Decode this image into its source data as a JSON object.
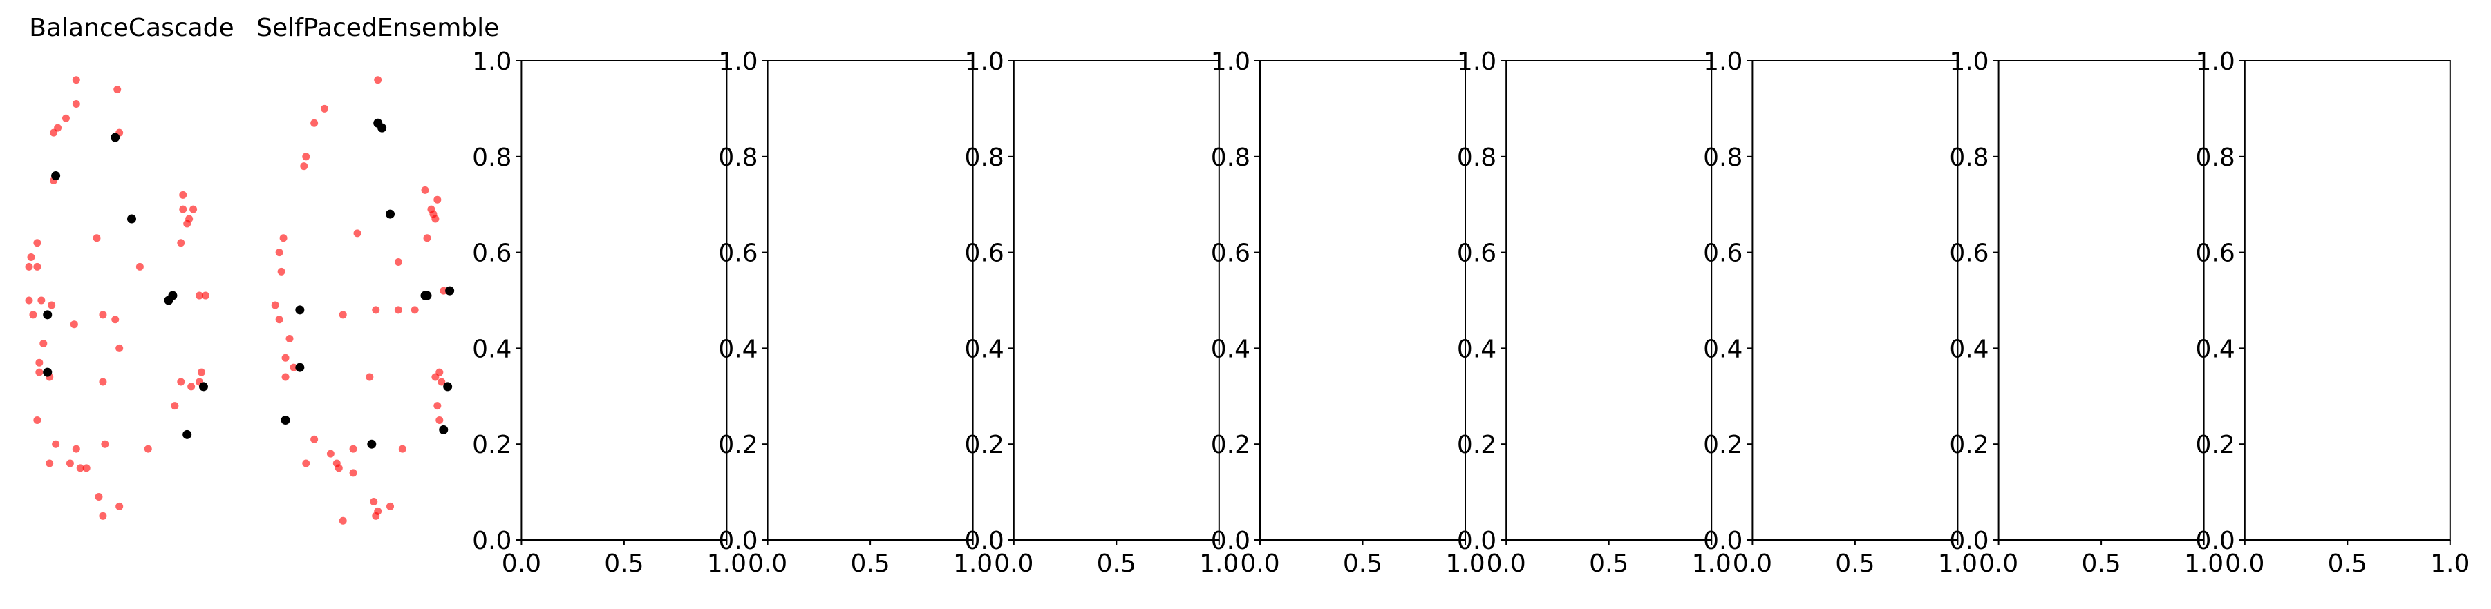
{
  "figure": {
    "background": "#ffffff",
    "accent_colors": {
      "majority": "#ff0000",
      "minority": "#000000",
      "axis": "#000000"
    }
  },
  "chart_data": [
    {
      "type": "scatter",
      "title": "BalanceCascade",
      "axis_visible": false,
      "xlim": [
        0,
        1
      ],
      "ylim": [
        0,
        1
      ],
      "series": [
        {
          "color": "#ff0000",
          "alpha": 0.6,
          "points": [
            [
              0.23,
              0.96
            ],
            [
              0.43,
              0.94
            ],
            [
              0.18,
              0.88
            ],
            [
              0.23,
              0.91
            ],
            [
              0.14,
              0.86
            ],
            [
              0.12,
              0.85
            ],
            [
              0.44,
              0.85
            ],
            [
              0.12,
              0.75
            ],
            [
              0.75,
              0.72
            ],
            [
              0.75,
              0.69
            ],
            [
              0.8,
              0.69
            ],
            [
              0.78,
              0.67
            ],
            [
              0.77,
              0.66
            ],
            [
              0.33,
              0.63
            ],
            [
              0.04,
              0.62
            ],
            [
              0.01,
              0.59
            ],
            [
              0.74,
              0.62
            ],
            [
              0.04,
              0.57
            ],
            [
              0.0,
              0.57
            ],
            [
              0.54,
              0.57
            ],
            [
              0.0,
              0.5
            ],
            [
              0.06,
              0.5
            ],
            [
              0.83,
              0.51
            ],
            [
              0.86,
              0.51
            ],
            [
              0.02,
              0.47
            ],
            [
              0.11,
              0.49
            ],
            [
              0.22,
              0.45
            ],
            [
              0.36,
              0.47
            ],
            [
              0.42,
              0.46
            ],
            [
              0.44,
              0.4
            ],
            [
              0.07,
              0.41
            ],
            [
              0.05,
              0.37
            ],
            [
              0.1,
              0.34
            ],
            [
              0.05,
              0.35
            ],
            [
              0.36,
              0.33
            ],
            [
              0.84,
              0.35
            ],
            [
              0.83,
              0.33
            ],
            [
              0.74,
              0.33
            ],
            [
              0.79,
              0.32
            ],
            [
              0.71,
              0.28
            ],
            [
              0.04,
              0.25
            ],
            [
              0.13,
              0.2
            ],
            [
              0.2,
              0.16
            ],
            [
              0.23,
              0.19
            ],
            [
              0.37,
              0.2
            ],
            [
              0.1,
              0.16
            ],
            [
              0.25,
              0.15
            ],
            [
              0.28,
              0.15
            ],
            [
              0.58,
              0.19
            ],
            [
              0.34,
              0.09
            ],
            [
              0.44,
              0.07
            ],
            [
              0.36,
              0.05
            ]
          ]
        },
        {
          "color": "#000000",
          "alpha": 1.0,
          "points": [
            [
              0.42,
              0.84
            ],
            [
              0.13,
              0.76
            ],
            [
              0.5,
              0.67
            ],
            [
              0.68,
              0.5
            ],
            [
              0.7,
              0.51
            ],
            [
              0.09,
              0.47
            ],
            [
              0.09,
              0.35
            ],
            [
              0.85,
              0.32
            ],
            [
              0.77,
              0.22
            ]
          ]
        }
      ]
    },
    {
      "type": "scatter",
      "title": "SelfPacedEnsemble",
      "axis_visible": false,
      "xlim": [
        0,
        1
      ],
      "ylim": [
        0,
        1
      ],
      "series": [
        {
          "color": "#ff0000",
          "alpha": 0.6,
          "points": [
            [
              0.5,
              0.96
            ],
            [
              0.24,
              0.9
            ],
            [
              0.19,
              0.87
            ],
            [
              0.15,
              0.8
            ],
            [
              0.14,
              0.78
            ],
            [
              0.73,
              0.73
            ],
            [
              0.79,
              0.71
            ],
            [
              0.76,
              0.69
            ],
            [
              0.78,
              0.67
            ],
            [
              0.77,
              0.68
            ],
            [
              0.4,
              0.64
            ],
            [
              0.74,
              0.63
            ],
            [
              0.04,
              0.63
            ],
            [
              0.02,
              0.6
            ],
            [
              0.03,
              0.56
            ],
            [
              0.6,
              0.58
            ],
            [
              0.82,
              0.52
            ],
            [
              0.0,
              0.49
            ],
            [
              0.33,
              0.47
            ],
            [
              0.49,
              0.48
            ],
            [
              0.6,
              0.48
            ],
            [
              0.68,
              0.48
            ],
            [
              0.02,
              0.46
            ],
            [
              0.07,
              0.42
            ],
            [
              0.05,
              0.38
            ],
            [
              0.09,
              0.36
            ],
            [
              0.05,
              0.34
            ],
            [
              0.78,
              0.34
            ],
            [
              0.8,
              0.35
            ],
            [
              0.46,
              0.34
            ],
            [
              0.81,
              0.33
            ],
            [
              0.84,
              0.32
            ],
            [
              0.79,
              0.28
            ],
            [
              0.8,
              0.25
            ],
            [
              0.19,
              0.21
            ],
            [
              0.38,
              0.19
            ],
            [
              0.27,
              0.18
            ],
            [
              0.62,
              0.19
            ],
            [
              0.15,
              0.16
            ],
            [
              0.31,
              0.15
            ],
            [
              0.3,
              0.16
            ],
            [
              0.38,
              0.14
            ],
            [
              0.48,
              0.08
            ],
            [
              0.56,
              0.07
            ],
            [
              0.5,
              0.06
            ],
            [
              0.49,
              0.05
            ],
            [
              0.33,
              0.04
            ]
          ]
        },
        {
          "color": "#000000",
          "alpha": 1.0,
          "points": [
            [
              0.5,
              0.87
            ],
            [
              0.52,
              0.86
            ],
            [
              0.56,
              0.68
            ],
            [
              0.74,
              0.51
            ],
            [
              0.73,
              0.51
            ],
            [
              0.85,
              0.52
            ],
            [
              0.12,
              0.48
            ],
            [
              0.12,
              0.36
            ],
            [
              0.84,
              0.32
            ],
            [
              0.82,
              0.23
            ],
            [
              0.05,
              0.25
            ],
            [
              0.47,
              0.2
            ]
          ]
        }
      ]
    },
    {
      "type": "scatter",
      "title": "",
      "axis_visible": true,
      "xlim": [
        0,
        1
      ],
      "ylim": [
        0,
        1
      ],
      "xticks": [
        "0.0",
        "0.5",
        "1.0"
      ],
      "yticks": [
        "0.0",
        "0.2",
        "0.4",
        "0.6",
        "0.8",
        "1.0"
      ],
      "series": []
    },
    {
      "type": "scatter",
      "title": "",
      "axis_visible": true,
      "xlim": [
        0,
        1
      ],
      "ylim": [
        0,
        1
      ],
      "xticks": [
        "0.0",
        "0.5",
        "1.0"
      ],
      "yticks": [
        "0.0",
        "0.2",
        "0.4",
        "0.6",
        "0.8",
        "1.0"
      ],
      "series": []
    },
    {
      "type": "scatter",
      "title": "",
      "axis_visible": true,
      "xlim": [
        0,
        1
      ],
      "ylim": [
        0,
        1
      ],
      "xticks": [
        "0.0",
        "0.5",
        "1.0"
      ],
      "yticks": [
        "0.0",
        "0.2",
        "0.4",
        "0.6",
        "0.8",
        "1.0"
      ],
      "series": []
    },
    {
      "type": "scatter",
      "title": "",
      "axis_visible": true,
      "xlim": [
        0,
        1
      ],
      "ylim": [
        0,
        1
      ],
      "xticks": [
        "0.0",
        "0.5",
        "1.0"
      ],
      "yticks": [
        "0.0",
        "0.2",
        "0.4",
        "0.6",
        "0.8",
        "1.0"
      ],
      "series": []
    },
    {
      "type": "scatter",
      "title": "",
      "axis_visible": true,
      "xlim": [
        0,
        1
      ],
      "ylim": [
        0,
        1
      ],
      "xticks": [
        "0.0",
        "0.5",
        "1.0"
      ],
      "yticks": [
        "0.0",
        "0.2",
        "0.4",
        "0.6",
        "0.8",
        "1.0"
      ],
      "series": []
    },
    {
      "type": "scatter",
      "title": "",
      "axis_visible": true,
      "xlim": [
        0,
        1
      ],
      "ylim": [
        0,
        1
      ],
      "xticks": [
        "0.0",
        "0.5",
        "1.0"
      ],
      "yticks": [
        "0.0",
        "0.2",
        "0.4",
        "0.6",
        "0.8",
        "1.0"
      ],
      "series": []
    },
    {
      "type": "scatter",
      "title": "",
      "axis_visible": true,
      "xlim": [
        0,
        1
      ],
      "ylim": [
        0,
        1
      ],
      "xticks": [
        "0.0",
        "0.5",
        "1.0"
      ],
      "yticks": [
        "0.0",
        "0.2",
        "0.4",
        "0.6",
        "0.8",
        "1.0"
      ],
      "series": []
    },
    {
      "type": "scatter",
      "title": "",
      "axis_visible": true,
      "xlim": [
        0,
        1
      ],
      "ylim": [
        0,
        1
      ],
      "xticks": [
        "0.0",
        "0.5",
        "1.0"
      ],
      "yticks": [
        "0.0",
        "0.2",
        "0.4",
        "0.6",
        "0.8",
        "1.0"
      ],
      "series": []
    }
  ]
}
